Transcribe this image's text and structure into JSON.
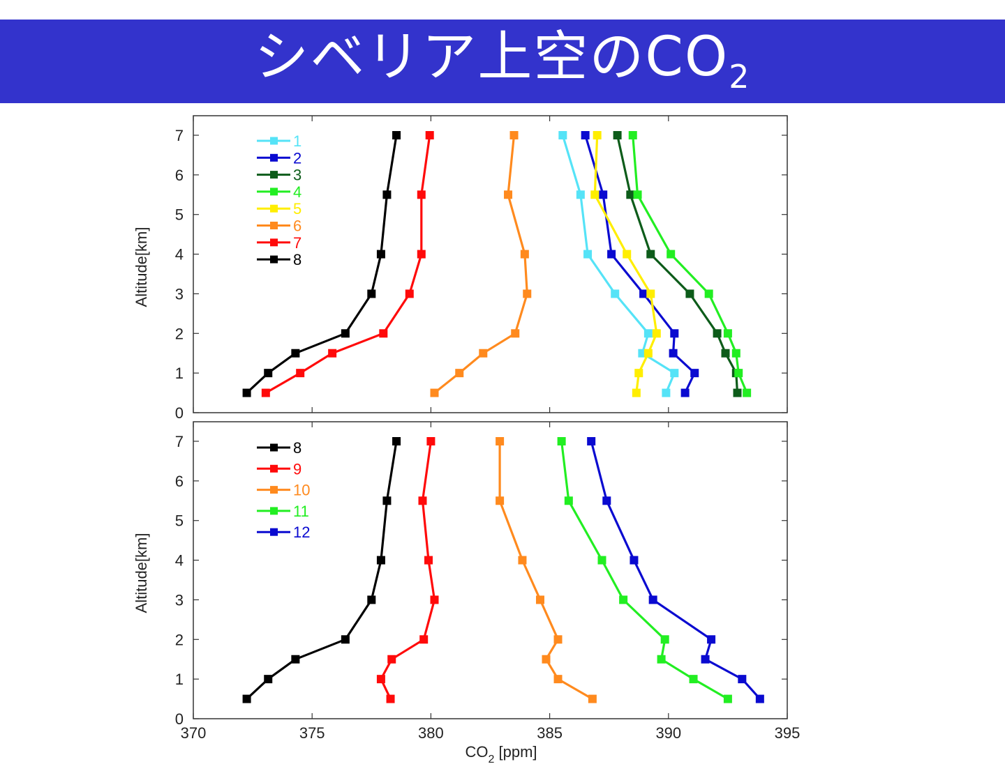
{
  "slide": {
    "title_main": "シベリア上空のCO",
    "title_sub": "2"
  },
  "chart_data": [
    {
      "type": "line",
      "panel": "top",
      "title": "",
      "xlabel": "CO2 [ppm]",
      "ylabel": "Altitude[km]",
      "xlim": [
        370,
        395
      ],
      "ylim": [
        0,
        7.5
      ],
      "yticks": [
        0,
        1,
        2,
        3,
        4,
        5,
        6,
        7
      ],
      "xticks": [
        370,
        375,
        380,
        385,
        390,
        395
      ],
      "show_xtick_labels": false,
      "grid": false,
      "legend_position": "upper-left",
      "y": [
        7,
        5.5,
        4,
        3,
        2,
        1.5,
        1,
        0.5
      ],
      "series": [
        {
          "name": "1",
          "color": "#55e3f7",
          "values": [
            385.55,
            386.3,
            386.6,
            387.75,
            389.15,
            388.9,
            390.25,
            389.9
          ]
        },
        {
          "name": "2",
          "color": "#0a0ad0",
          "values": [
            386.5,
            387.25,
            387.6,
            388.95,
            390.25,
            390.2,
            391.1,
            390.7
          ]
        },
        {
          "name": "3",
          "color": "#0d5c1a",
          "values": [
            387.85,
            388.4,
            389.25,
            390.9,
            392.05,
            392.4,
            392.85,
            392.9
          ]
        },
        {
          "name": "4",
          "color": "#22ee22",
          "values": [
            388.5,
            388.7,
            390.1,
            391.7,
            392.5,
            392.85,
            392.95,
            393.3
          ]
        },
        {
          "name": "5",
          "color": "#ffee00",
          "values": [
            387.0,
            386.9,
            388.25,
            389.25,
            389.5,
            389.15,
            388.75,
            388.65
          ]
        },
        {
          "name": "6",
          "color": "#ff8a1e",
          "values": [
            383.5,
            383.25,
            383.95,
            384.05,
            383.55,
            382.2,
            381.2,
            380.15
          ]
        },
        {
          "name": "7",
          "color": "#ff0a0a",
          "values": [
            379.95,
            379.6,
            379.6,
            379.1,
            378.0,
            375.85,
            374.5,
            373.05
          ]
        },
        {
          "name": "8",
          "color": "#000000",
          "values": [
            378.55,
            378.15,
            377.9,
            377.5,
            376.4,
            374.3,
            373.15,
            372.25
          ]
        }
      ]
    },
    {
      "type": "line",
      "panel": "bottom",
      "title": "",
      "xlabel": "CO2 [ppm]",
      "ylabel": "Altitude[km]",
      "xlim": [
        370,
        395
      ],
      "ylim": [
        0,
        7.5
      ],
      "yticks": [
        0,
        1,
        2,
        3,
        4,
        5,
        6,
        7
      ],
      "xticks": [
        370,
        375,
        380,
        385,
        390,
        395
      ],
      "show_xtick_labels": true,
      "grid": false,
      "legend_position": "upper-left",
      "y": [
        7,
        5.5,
        4,
        3,
        2,
        1.5,
        1,
        0.5
      ],
      "series": [
        {
          "name": "8",
          "color": "#000000",
          "values": [
            378.55,
            378.15,
            377.9,
            377.5,
            376.4,
            374.3,
            373.15,
            372.25
          ]
        },
        {
          "name": "9",
          "color": "#ff0a0a",
          "values": [
            380.0,
            379.65,
            379.9,
            380.15,
            379.7,
            378.35,
            377.9,
            378.3
          ]
        },
        {
          "name": "10",
          "color": "#ff8a1e",
          "values": [
            382.9,
            382.9,
            383.85,
            384.6,
            385.35,
            384.85,
            385.35,
            386.8
          ]
        },
        {
          "name": "11",
          "color": "#22ee22",
          "values": [
            385.5,
            385.8,
            387.2,
            388.1,
            389.85,
            389.7,
            391.05,
            392.5
          ]
        },
        {
          "name": "12",
          "color": "#0a0ad0",
          "values": [
            386.75,
            387.4,
            388.55,
            389.35,
            391.8,
            391.55,
            393.1,
            393.85
          ]
        }
      ]
    }
  ],
  "axes": {
    "ylabel": "Altitude[km]",
    "xlabel_main": "CO",
    "xlabel_sub": "2",
    "xlabel_unit": " [ppm]"
  }
}
